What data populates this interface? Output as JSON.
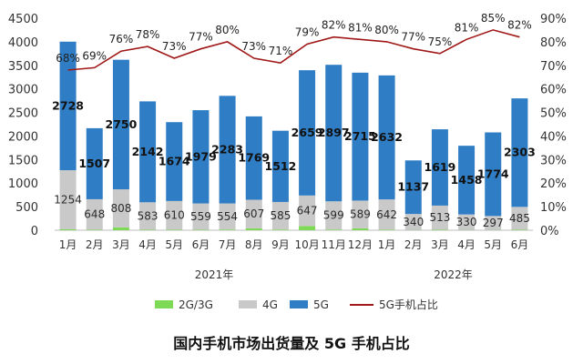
{
  "caption": "国内手机市场出货量及 5G 手机占比",
  "chart_data": {
    "type": "bar",
    "stacked": true,
    "categories": [
      "1月",
      "2月",
      "3月",
      "4月",
      "5月",
      "6月",
      "7月",
      "8月",
      "9月",
      "10月",
      "11月",
      "12月",
      "1月",
      "2月",
      "3月",
      "4月",
      "5月",
      "6月"
    ],
    "year_groups": [
      {
        "label": "2021年",
        "start": 0,
        "end": 11
      },
      {
        "label": "2022年",
        "start": 12,
        "end": 17
      }
    ],
    "series": [
      {
        "name": "2G/3G",
        "color": "#7ed957",
        "values": [
          20,
          10,
          60,
          10,
          10,
          10,
          15,
          40,
          15,
          90,
          15,
          40,
          12,
          5,
          10,
          5,
          5,
          10
        ]
      },
      {
        "name": "4G",
        "color": "#c9c9c9",
        "values": [
          1254,
          648,
          808,
          583,
          610,
          559,
          554,
          607,
          585,
          647,
          599,
          589,
          642,
          340,
          513,
          330,
          297,
          485
        ]
      },
      {
        "name": "5G",
        "color": "#2f7dc4",
        "values": [
          2728,
          1507,
          2750,
          2142,
          1674,
          1979,
          2283,
          1769,
          1512,
          2659,
          2897,
          2715,
          2632,
          1137,
          1619,
          1458,
          1774,
          2303
        ]
      }
    ],
    "line": {
      "name": "5G手机占比",
      "color": "#a01818",
      "unit": "%",
      "values": [
        68,
        69,
        76,
        78,
        73,
        77,
        80,
        73,
        71,
        79,
        82,
        81,
        80,
        77,
        75,
        81,
        85,
        82
      ]
    },
    "y_left": {
      "min": 0,
      "max": 4500,
      "ticks": [
        0,
        500,
        1000,
        1500,
        2000,
        2500,
        3000,
        3500,
        4000,
        4500
      ]
    },
    "y_right": {
      "min": 0,
      "max": 90,
      "ticks": [
        "0%",
        "10%",
        "20%",
        "30%",
        "40%",
        "50%",
        "60%",
        "70%",
        "80%",
        "90%"
      ]
    },
    "legend_position": "bottom",
    "grid": false
  }
}
